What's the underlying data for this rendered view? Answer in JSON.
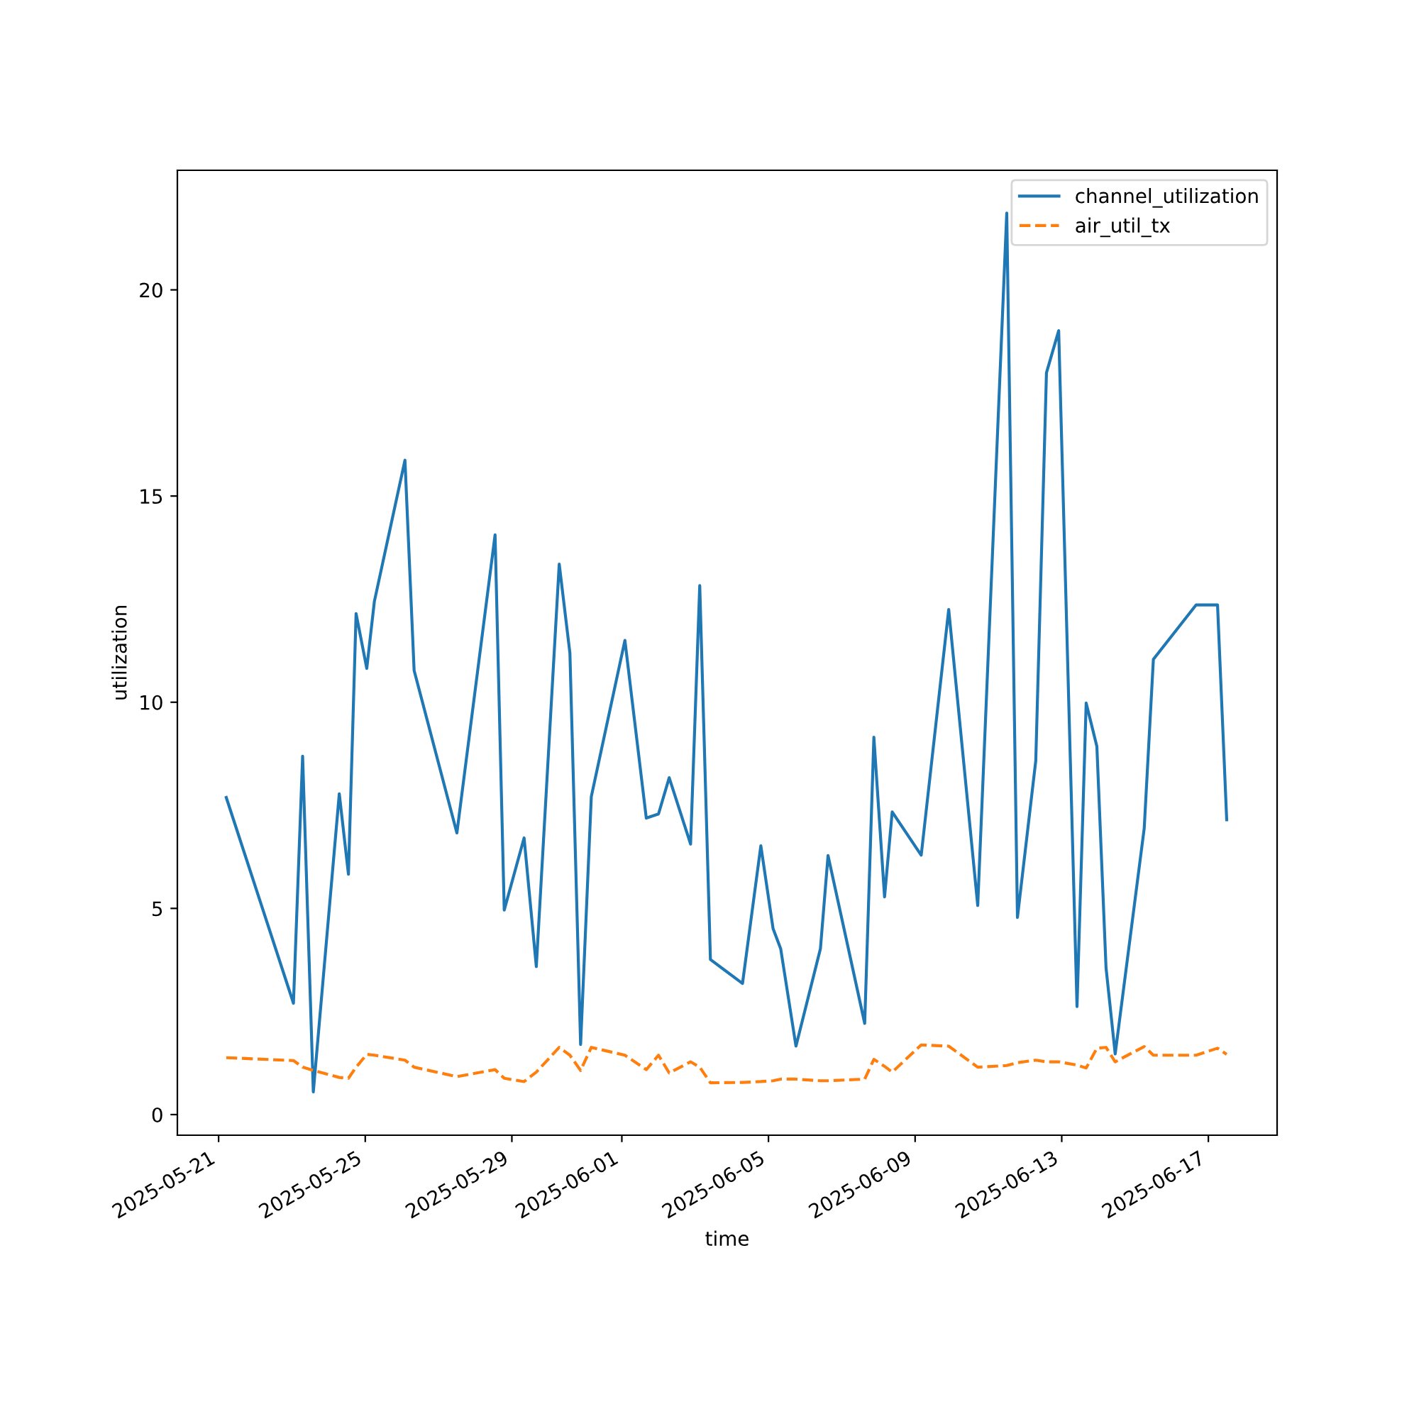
{
  "chart_data": {
    "type": "line",
    "xlabel": "time",
    "ylabel": "utilization",
    "x": [
      "2025-05-21T05:00",
      "2025-05-23T01:00",
      "2025-05-23T07:00",
      "2025-05-23T14:00",
      "2025-05-24T07:00",
      "2025-05-24T13:00",
      "2025-05-24T18:00",
      "2025-05-25T01:00",
      "2025-05-25T06:00",
      "2025-05-26T02:00",
      "2025-05-26T08:00",
      "2025-05-27T12:00",
      "2025-05-28T13:00",
      "2025-05-28T19:00",
      "2025-05-29T08:00",
      "2025-05-29T16:00",
      "2025-05-30T07:00",
      "2025-05-30T14:00",
      "2025-05-30T21:00",
      "2025-05-31T04:00",
      "2025-06-01T02:00",
      "2025-06-01T16:00",
      "2025-06-02T00:00",
      "2025-06-02T07:00",
      "2025-06-02T21:00",
      "2025-06-03T03:00",
      "2025-06-03T10:00",
      "2025-06-04T07:00",
      "2025-06-04T19:00",
      "2025-06-05T03:00",
      "2025-06-05T08:00",
      "2025-06-05T18:00",
      "2025-06-06T10:00",
      "2025-06-06T15:00",
      "2025-06-07T15:00",
      "2025-06-07T21:00",
      "2025-06-08T04:00",
      "2025-06-08T09:00",
      "2025-06-09T04:00",
      "2025-06-09T22:00",
      "2025-06-10T17:00",
      "2025-06-11T12:00",
      "2025-06-11T19:00",
      "2025-06-12T07:00",
      "2025-06-12T14:00",
      "2025-06-12T22:00",
      "2025-06-13T10:00",
      "2025-06-13T16:00",
      "2025-06-13T23:00",
      "2025-06-14T05:00",
      "2025-06-14T11:00",
      "2025-06-15T06:00",
      "2025-06-15T12:00",
      "2025-06-16T16:00",
      "2025-06-17T06:00",
      "2025-06-17T12:00"
    ],
    "series": [
      {
        "name": "channel_utilization",
        "color": "#1f77b4",
        "line_style": "solid",
        "values": [
          7.69,
          2.7,
          8.69,
          0.55,
          7.78,
          5.83,
          12.15,
          10.82,
          12.45,
          15.87,
          10.77,
          6.83,
          14.06,
          4.96,
          6.71,
          3.59,
          13.35,
          11.19,
          1.7,
          7.71,
          11.5,
          7.19,
          7.29,
          8.17,
          6.56,
          12.83,
          3.76,
          3.18,
          6.52,
          4.51,
          4.02,
          1.66,
          4.02,
          6.28,
          2.21,
          9.15,
          5.28,
          7.34,
          6.29,
          12.25,
          5.07,
          21.86,
          4.78,
          8.58,
          17.99,
          19.01,
          2.62,
          9.98,
          8.93,
          3.56,
          1.47,
          6.94,
          11.04,
          12.36,
          12.36,
          7.15
        ]
      },
      {
        "name": "air_util_tx",
        "color": "#ff7f0e",
        "line_style": "dashed",
        "values": [
          1.38,
          1.31,
          1.15,
          1.07,
          0.9,
          0.88,
          1.15,
          1.46,
          1.44,
          1.32,
          1.15,
          0.92,
          1.09,
          0.88,
          0.8,
          1.03,
          1.63,
          1.44,
          1.07,
          1.63,
          1.44,
          1.09,
          1.44,
          1.01,
          1.28,
          1.15,
          0.77,
          0.78,
          0.8,
          0.82,
          0.86,
          0.86,
          0.82,
          0.82,
          0.86,
          1.34,
          1.17,
          1.03,
          1.69,
          1.66,
          1.15,
          1.19,
          1.26,
          1.32,
          1.28,
          1.28,
          1.2,
          1.13,
          1.61,
          1.63,
          1.28,
          1.65,
          1.44,
          1.44,
          1.61,
          1.46
        ]
      }
    ],
    "xlim": [
      "2025-05-19T21:00",
      "2025-06-18T21:00"
    ],
    "xticks": [
      {
        "value": "2025-05-21",
        "label": "2025-05-21"
      },
      {
        "value": "2025-05-25",
        "label": "2025-05-25"
      },
      {
        "value": "2025-05-29",
        "label": "2025-05-29"
      },
      {
        "value": "2025-06-01",
        "label": "2025-06-01"
      },
      {
        "value": "2025-06-05",
        "label": "2025-06-05"
      },
      {
        "value": "2025-06-09",
        "label": "2025-06-09"
      },
      {
        "value": "2025-06-13",
        "label": "2025-06-13"
      },
      {
        "value": "2025-06-17",
        "label": "2025-06-17"
      }
    ],
    "ylim": [
      -0.5,
      22.9
    ],
    "yticks": [
      0,
      5,
      10,
      15,
      20
    ],
    "legend": "top right",
    "grid": false
  }
}
